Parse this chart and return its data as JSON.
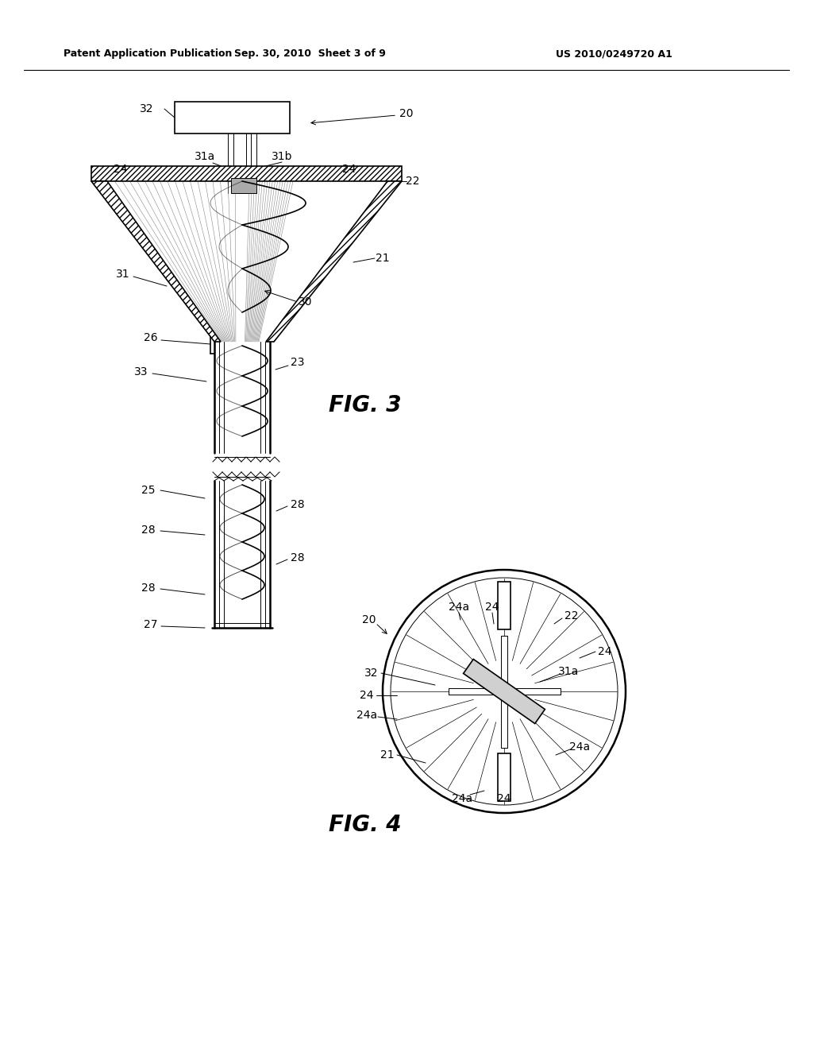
{
  "bg_color": "#ffffff",
  "line_color": "#000000",
  "header_left": "Patent Application Publication",
  "header_mid": "Sep. 30, 2010  Sheet 3 of 9",
  "header_right": "US 2010/0249720 A1",
  "fig3_label": "FIG. 3",
  "fig4_label": "FIG. 4"
}
